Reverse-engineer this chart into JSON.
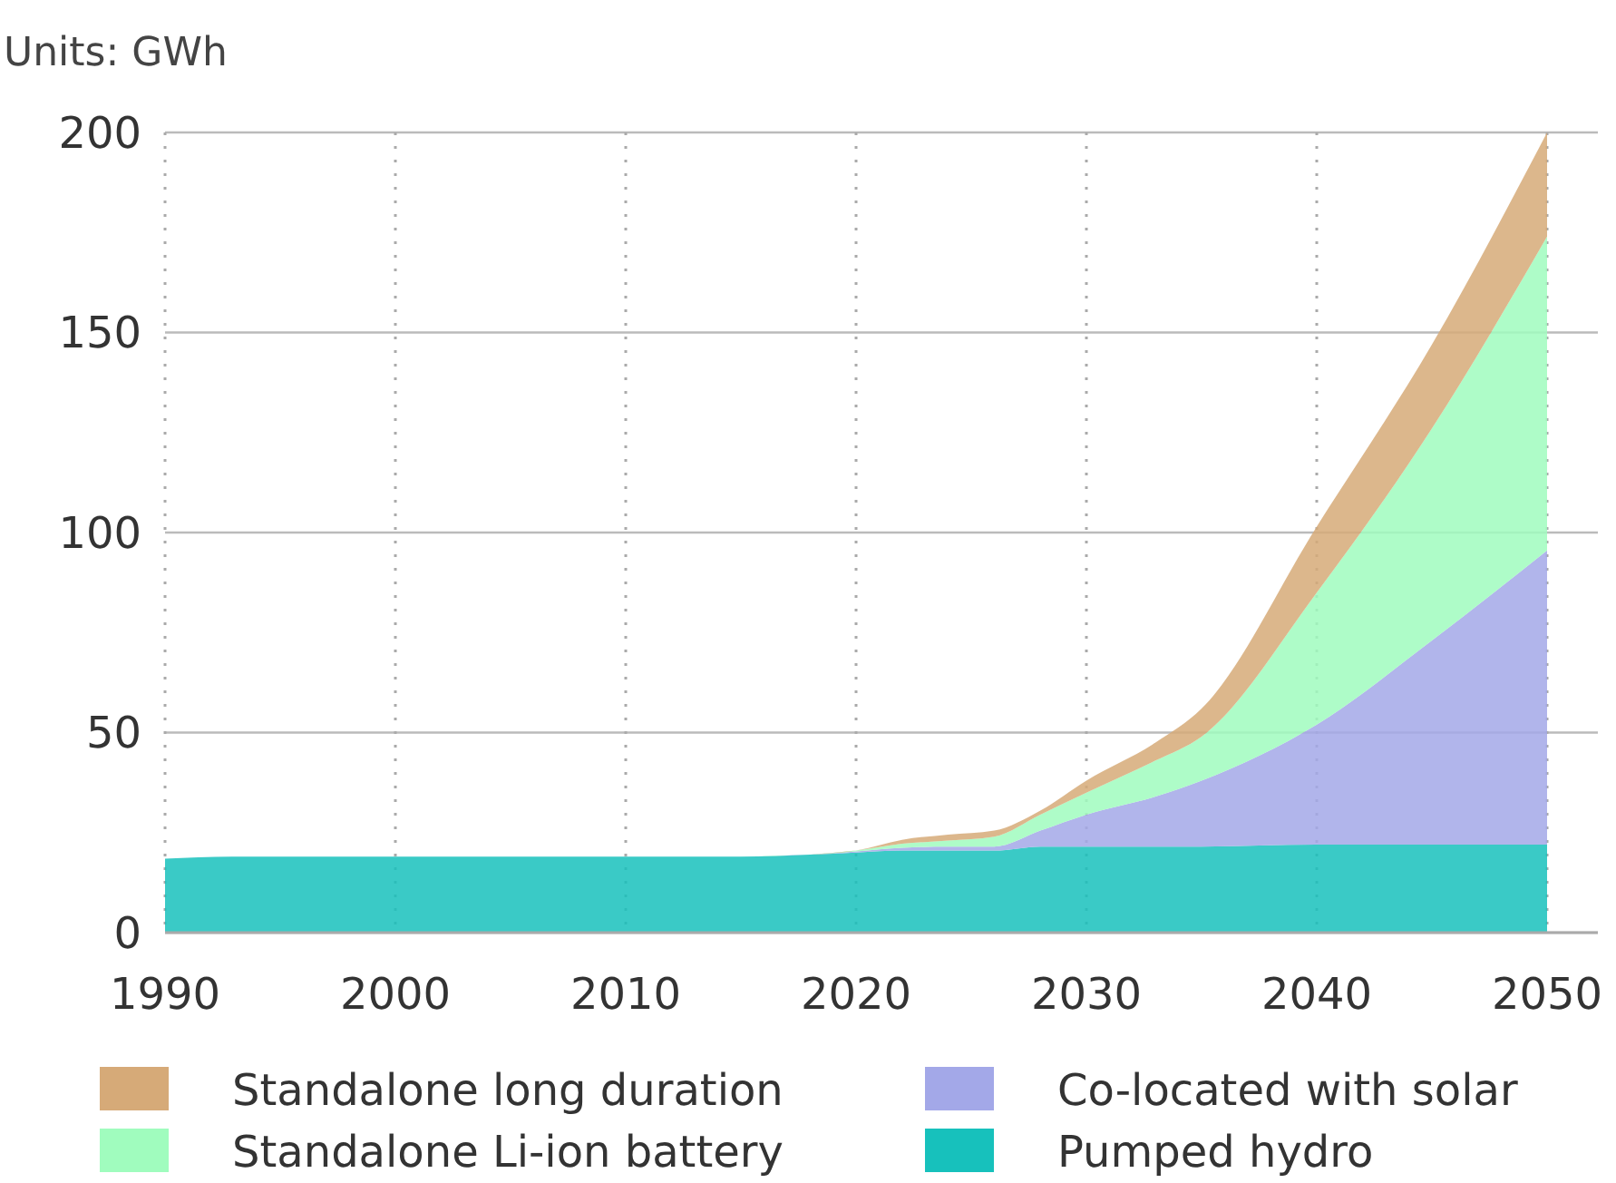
{
  "chart_data": {
    "type": "area",
    "stacked": true,
    "title": "Units: GWh",
    "x": [
      1990,
      1993,
      2000,
      2010,
      2015,
      2018,
      2020,
      2022,
      2024,
      2026,
      2028,
      2030,
      2033,
      2035,
      2040,
      2045,
      2050
    ],
    "series": [
      {
        "name": "Pumped hydro",
        "color": "#17c1bc",
        "values": [
          18.5,
          19,
          19,
          19,
          19,
          19.5,
          20,
          20.5,
          20.5,
          20.5,
          21.5,
          21.5,
          21.5,
          21.5,
          22,
          22,
          22
        ]
      },
      {
        "name": "Co-located with solar",
        "color": "#a3a8e8",
        "values": [
          0,
          0,
          0,
          0,
          0,
          0,
          0.3,
          0.7,
          1,
          1,
          4,
          8,
          12.5,
          16.5,
          30,
          51,
          73.5
        ]
      },
      {
        "name": "Standalone Li-ion battery",
        "color": "#a0fcbe",
        "values": [
          0,
          0,
          0,
          0,
          0,
          0,
          0.2,
          1,
          1.5,
          2.5,
          4,
          5.5,
          9,
          11,
          33,
          53,
          78.5
        ]
      },
      {
        "name": "Standalone long duration",
        "color": "#d6aa78",
        "values": [
          0,
          0,
          0,
          0,
          0,
          0,
          0,
          1,
          1.5,
          1.5,
          1,
          3,
          4.5,
          7,
          16.5,
          21,
          26
        ]
      }
    ],
    "xlim": [
      1990,
      2050
    ],
    "xticks": [
      1990,
      2000,
      2010,
      2020,
      2030,
      2040,
      2050
    ],
    "ylim": [
      0,
      200
    ],
    "yticks": [
      0,
      50,
      100,
      150,
      200
    ],
    "grid": true,
    "legend": "bottom"
  }
}
